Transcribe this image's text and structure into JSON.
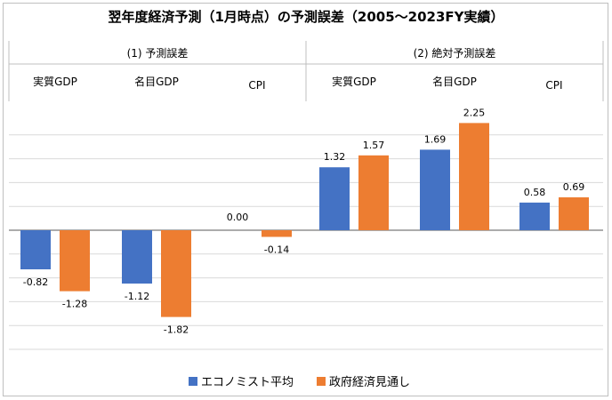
{
  "chart_data": {
    "type": "bar",
    "title": "翌年度経済予測（1月時点）の予測誤差（2005～2023FY実績）",
    "groups": [
      {
        "label": "(1) 予測誤差",
        "categories": [
          "実質GDP",
          "名目GDP",
          "CPI"
        ]
      },
      {
        "label": "(2) 絶対予測誤差",
        "categories": [
          "実質GDP",
          "名目GDP",
          "CPI"
        ]
      }
    ],
    "categories": [
      "実質GDP",
      "名目GDP",
      "CPI",
      "実質GDP",
      "名目GDP",
      "CPI"
    ],
    "series": [
      {
        "name": "エコノミスト平均",
        "color": "#4472c4",
        "values": [
          -0.82,
          -1.12,
          0.0,
          1.32,
          1.69,
          0.58
        ],
        "labels": [
          "-0.82",
          "-1.12",
          "0.00",
          "1.32",
          "1.69",
          "0.58"
        ]
      },
      {
        "name": "政府経済見通し",
        "color": "#ed7d31",
        "values": [
          -1.28,
          -1.82,
          -0.14,
          1.57,
          2.25,
          0.69
        ],
        "labels": [
          "-1.28",
          "-1.82",
          "-0.14",
          "1.57",
          "2.25",
          "0.69"
        ]
      }
    ],
    "ylim": [
      -2.5,
      2.5
    ],
    "grid": true,
    "legend_position": "bottom"
  }
}
